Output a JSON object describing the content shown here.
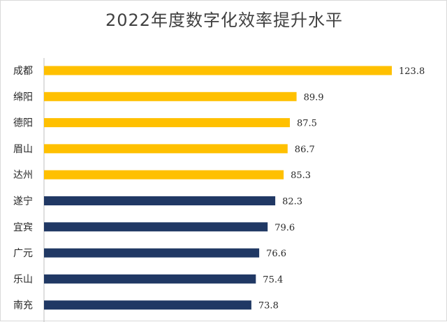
{
  "chart_data": {
    "type": "bar",
    "orientation": "horizontal",
    "title": "2022年度数字化效率提升水平",
    "categories": [
      "成都",
      "绵阳",
      "德阳",
      "眉山",
      "达州",
      "遂宁",
      "宜宾",
      "广元",
      "乐山",
      "南充"
    ],
    "values": [
      123.8,
      89.9,
      87.5,
      86.7,
      85.3,
      82.3,
      79.6,
      76.6,
      75.4,
      73.8
    ],
    "value_labels": [
      "123.8",
      "89.9",
      "87.5",
      "86.7",
      "85.3",
      "82.3",
      "79.6",
      "76.6",
      "75.4",
      "73.8"
    ],
    "bar_colors": [
      "#ffc000",
      "#ffc000",
      "#ffc000",
      "#ffc000",
      "#ffc000",
      "#203864",
      "#203864",
      "#203864",
      "#203864",
      "#203864"
    ],
    "xlim": [
      0,
      140
    ],
    "xlabel": "",
    "ylabel": "",
    "grid": false,
    "legend": "none"
  }
}
